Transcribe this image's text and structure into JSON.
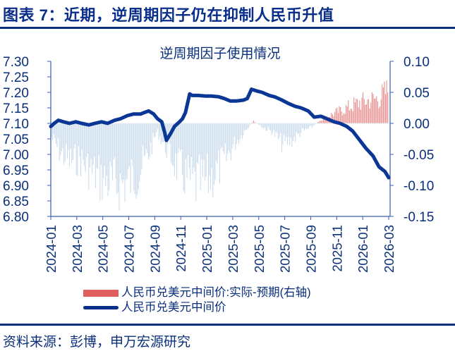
{
  "header": {
    "title": "图表 7：近期，逆周期因子仍在抑制人民币升值"
  },
  "footer": {
    "source": "资料来源：彭博，申万宏源研究"
  },
  "colors": {
    "title": "#0a2f8a",
    "line": "#0a3796",
    "bar_negative": "#bcd3e6",
    "bar_positive": "#e06060",
    "axis": "#3a5fb0"
  },
  "chart_data": {
    "type": "line+bar",
    "title": "逆周期因子使用情况",
    "xlabel": "",
    "ylabel_left": "",
    "ylabel_right": "",
    "x_ticks": [
      "2024-01",
      "2024-03",
      "2024-05",
      "2024-07",
      "2024-09",
      "2024-11",
      "2025-01",
      "2025-03",
      "2025-05",
      "2025-07",
      "2025-09",
      "2025-11",
      "2026-01",
      "2026-03"
    ],
    "y_left_ticks": [
      "7.30",
      "7.25",
      "7.20",
      "7.15",
      "7.10",
      "7.05",
      "7.00",
      "6.95",
      "6.90",
      "6.85",
      "6.80"
    ],
    "y_right_ticks": [
      "0.10",
      "0.05",
      "0.00",
      "-0.05",
      "-0.10",
      "-0.15"
    ],
    "ylim_left": [
      6.8,
      7.3
    ],
    "ylim_right": [
      -0.15,
      0.1
    ],
    "grid": false,
    "legend_position": "bottom",
    "legend": [
      {
        "label": "人民币兑美元中间价:实际-预期(右轴)",
        "type": "bar",
        "color": "#e06060"
      },
      {
        "label": "人民币兑美元中间价",
        "type": "line",
        "color": "#0a2f8a"
      }
    ],
    "series": [
      {
        "name": "人民币兑美元中间价",
        "axis": "left",
        "type": "line",
        "x": [
          "2024-01-02",
          "2024-01-10",
          "2024-01-20",
          "2024-02-01",
          "2024-02-15",
          "2024-03-01",
          "2024-03-15",
          "2024-04-01",
          "2024-04-15",
          "2024-05-01",
          "2024-05-15",
          "2024-06-01",
          "2024-06-15",
          "2024-07-01",
          "2024-07-15",
          "2024-08-01",
          "2024-08-10",
          "2024-08-20",
          "2024-09-01",
          "2024-09-10",
          "2024-09-20",
          "2024-09-27",
          "2024-10-01",
          "2024-10-10",
          "2024-10-20",
          "2024-11-01",
          "2024-11-08",
          "2024-11-15",
          "2024-11-25",
          "2024-12-01",
          "2024-12-15",
          "2025-01-01",
          "2025-01-15",
          "2025-02-01",
          "2025-02-15",
          "2025-03-01",
          "2025-03-15",
          "2025-04-01",
          "2025-04-10",
          "2025-04-20",
          "2025-05-01",
          "2025-05-15",
          "2025-06-01",
          "2025-06-15",
          "2025-07-01",
          "2025-07-15",
          "2025-08-01",
          "2025-08-15",
          "2025-09-01",
          "2025-09-15",
          "2025-10-01",
          "2025-10-15",
          "2025-11-01",
          "2025-11-15",
          "2025-12-01",
          "2025-12-15",
          "2026-01-01",
          "2026-01-15",
          "2026-02-01",
          "2026-02-15",
          "2026-03-01",
          "2026-03-10"
        ],
        "values": [
          7.09,
          7.1,
          7.11,
          7.105,
          7.1,
          7.105,
          7.1,
          7.095,
          7.1,
          7.105,
          7.1,
          7.11,
          7.115,
          7.125,
          7.13,
          7.13,
          7.135,
          7.14,
          7.13,
          7.115,
          7.105,
          7.07,
          7.045,
          7.065,
          7.09,
          7.105,
          7.115,
          7.135,
          7.195,
          7.19,
          7.19,
          7.188,
          7.188,
          7.186,
          7.18,
          7.172,
          7.172,
          7.175,
          7.18,
          7.21,
          7.205,
          7.2,
          7.19,
          7.185,
          7.175,
          7.165,
          7.155,
          7.15,
          7.14,
          7.12,
          7.123,
          7.115,
          7.105,
          7.1,
          7.09,
          7.075,
          7.045,
          7.02,
          6.995,
          6.96,
          6.945,
          6.925
        ]
      },
      {
        "name": "人民币兑美元中间价:实际-预期(右轴)",
        "axis": "right",
        "type": "bar",
        "x_range": [
          "2024-01-02",
          "2026-03-10"
        ],
        "description": "Daily bars; negative (light blue) through most of 2024-2025 with troughs near -0.145 in mid-2024 and around 2025-01/02; small mixed values mid-2025; positive (red) from 2025-12 rising to about +0.06 to +0.08 by 2026-03",
        "sample_values": [
          -0.03,
          -0.07,
          -0.09,
          -0.085,
          -0.11,
          -0.13,
          -0.14,
          -0.145,
          -0.14,
          -0.12,
          -0.08,
          -0.02,
          -0.06,
          -0.1,
          -0.13,
          -0.145,
          -0.14,
          -0.12,
          -0.09,
          -0.05,
          -0.02,
          0.005,
          -0.01,
          -0.02,
          -0.05,
          -0.04,
          -0.02,
          -0.01,
          0.01,
          0.02,
          0.03,
          0.04,
          0.05,
          0.055,
          0.06,
          0.08
        ]
      }
    ]
  }
}
